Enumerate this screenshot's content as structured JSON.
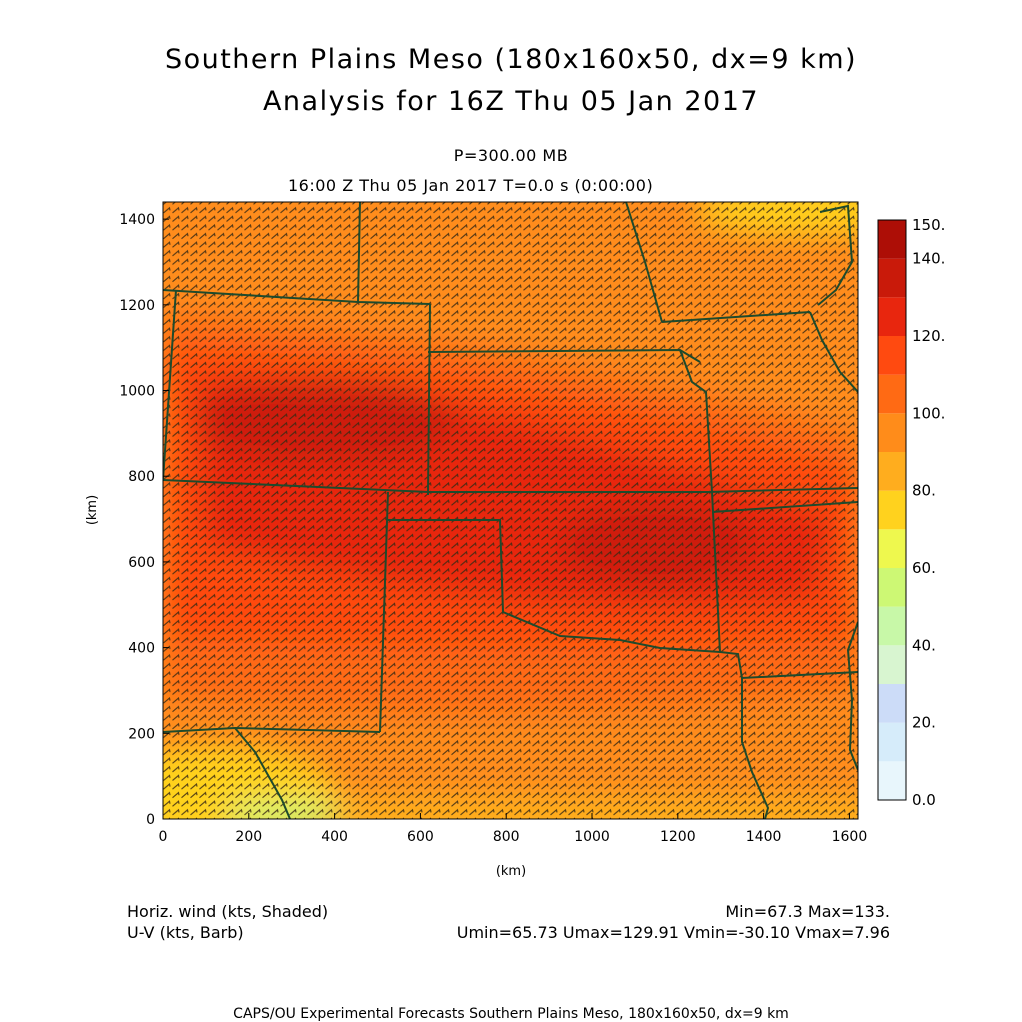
{
  "header": {
    "title_line1": "Southern Plains Meso (180x160x50, dx=9 km)",
    "title_line2": "Analysis for 16Z Thu 05 Jan 2017",
    "level_label": "P=300.00 MB",
    "time_label": "16:00 Z Thu 05 Jan 2017    T=0.0 s (0:00:00)"
  },
  "footer": {
    "field_shaded": "Horiz. wind (kts, Shaded)",
    "field_barb": "U-V (kts, Barb)",
    "minmax": "Min=67.3 Max=133.",
    "uv_stats": "Umin=65.73 Umax=129.91 Vmin=-30.10 Vmax=7.96",
    "credit": "CAPS/OU Experimental Forecasts  Southern Plains Meso, 180x160x50, dx=9 km"
  },
  "chart_data": {
    "type": "heatmap",
    "title": "Southern Plains Meso (180x160x50, dx=9 km)",
    "xlabel": "(km)",
    "ylabel": "(km)",
    "xlim": [
      0,
      1620
    ],
    "ylim": [
      0,
      1440
    ],
    "x_ticks": [
      0,
      200,
      400,
      600,
      800,
      1000,
      1200,
      1400,
      1600
    ],
    "y_ticks": [
      0,
      200,
      400,
      600,
      800,
      1000,
      1200,
      1400
    ],
    "field_range": {
      "min": 67.3,
      "max": 133
    },
    "colorbar": {
      "levels": [
        0,
        10,
        20,
        30,
        40,
        50,
        60,
        70,
        80,
        90,
        100,
        110,
        120,
        130,
        140,
        150
      ],
      "labels": [
        "0.0",
        "20.",
        "40.",
        "60.",
        "80.",
        "100.",
        "120.",
        "140.",
        "150."
      ],
      "colors": [
        "#e8f6fc",
        "#d6ecfa",
        "#ccdcf8",
        "#d8f5d0",
        "#c8f8a8",
        "#cdf874",
        "#eef84e",
        "#ffd21e",
        "#ffad1e",
        "#ff8c1a",
        "#ff6a14",
        "#ff4a10",
        "#e8260e",
        "#c91a0a",
        "#ad0e06"
      ]
    },
    "wind_maxima_centers": [
      {
        "x": 380,
        "y": 930,
        "value": 130
      },
      {
        "x": 1150,
        "y": 640,
        "value": 128
      }
    ]
  },
  "colors": {
    "border_lines": "#1e4a2c",
    "barb": "#3a2a14"
  }
}
